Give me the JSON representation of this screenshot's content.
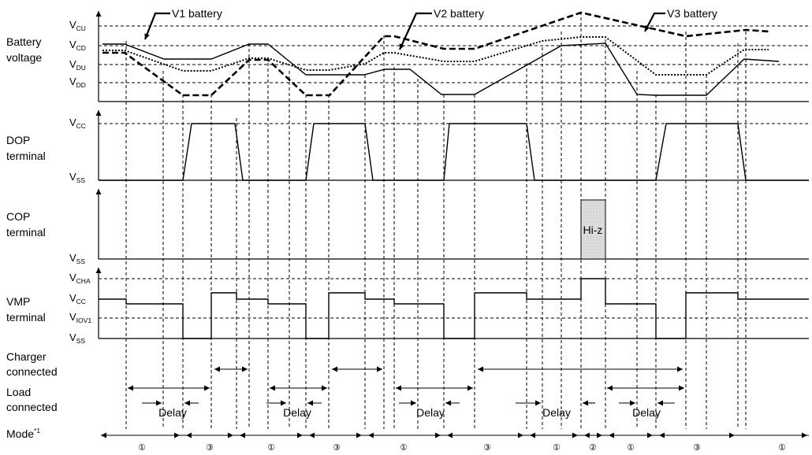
{
  "battery_labels": {
    "v1": "V1 battery",
    "v2": "V2 battery",
    "v3": "V3 battery"
  },
  "row_labels": {
    "battery_voltage": [
      "Battery",
      "voltage"
    ],
    "dop_terminal": [
      "DOP",
      "terminal"
    ],
    "cop_terminal": [
      "COP",
      "terminal"
    ],
    "vmp_terminal": [
      "VMP",
      "terminal"
    ],
    "charger_connected": [
      "Charger",
      "connected"
    ],
    "load_connected": [
      "Load",
      "connected"
    ],
    "mode": "Mode",
    "mode_footnote": "*1"
  },
  "voltage_levels": {
    "vcu": {
      "main": "V",
      "sub": "CU"
    },
    "vcd": {
      "main": "V",
      "sub": "CD"
    },
    "vdu": {
      "main": "V",
      "sub": "DU"
    },
    "vdd": {
      "main": "V",
      "sub": "DD"
    },
    "vcc": {
      "main": "V",
      "sub": "CC"
    },
    "vss": {
      "main": "V",
      "sub": "SS"
    },
    "vcha": {
      "main": "V",
      "sub": "CHA"
    },
    "viov1": {
      "main": "V",
      "sub": "IOV1"
    }
  },
  "hi_z_label": "Hi-z",
  "delay_label": "Delay",
  "modes": [
    "①",
    "③",
    "①",
    "③",
    "①",
    "③",
    "①",
    "②",
    "①",
    "③",
    "①"
  ]
}
